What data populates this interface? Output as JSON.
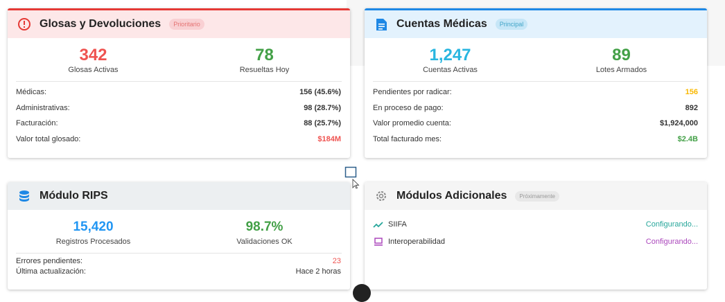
{
  "cards": [
    {
      "title": "Glosas y Devoluciones",
      "badge": "Prioritario",
      "stats": [
        {
          "value": "342",
          "label": "Glosas Activas"
        },
        {
          "value": "78",
          "label": "Resueltas Hoy"
        }
      ],
      "rows": [
        {
          "label": "Médicas:",
          "value": "156 (45.6%)"
        },
        {
          "label": "Administrativas:",
          "value": "98 (28.7%)"
        },
        {
          "label": "Facturación:",
          "value": "88 (25.7%)"
        },
        {
          "label": "Valor total glosado:",
          "value": "$184M"
        }
      ]
    },
    {
      "title": "Cuentas Médicas",
      "badge": "Principal",
      "stats": [
        {
          "value": "1,247",
          "label": "Cuentas Activas"
        },
        {
          "value": "89",
          "label": "Lotes Armados"
        }
      ],
      "rows": [
        {
          "label": "Pendientes por radicar:",
          "value": "156"
        },
        {
          "label": "En proceso de pago:",
          "value": "892"
        },
        {
          "label": "Valor promedio cuenta:",
          "value": "$1,924,000"
        },
        {
          "label": "Total facturado mes:",
          "value": "$2.4B"
        }
      ]
    },
    {
      "title": "Módulo RIPS",
      "stats": [
        {
          "value": "15,420",
          "label": "Registros Procesados"
        },
        {
          "value": "98.7%",
          "label": "Validaciones OK"
        }
      ],
      "rows": [
        {
          "label": "Errores pendientes:",
          "value": "23"
        },
        {
          "label": "Última actualización:",
          "value": "Hace 2 horas"
        }
      ]
    },
    {
      "title": "Módulos Adicionales",
      "badge": "Próximamente",
      "items": [
        {
          "label": "SIIFA",
          "status": "Configurando..."
        },
        {
          "label": "Interoperabilidad",
          "status": "Configurando..."
        }
      ]
    }
  ]
}
